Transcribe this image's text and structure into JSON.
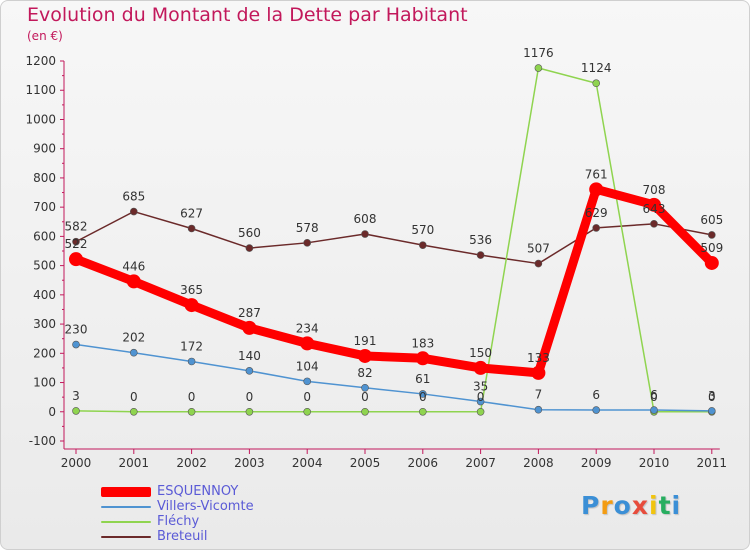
{
  "chart_data": {
    "type": "line",
    "title": "Evolution du Montant de la Dette par Habitant",
    "unit": "(en €)",
    "xlabel": "",
    "ylabel": "",
    "ylim": [
      -100,
      1200
    ],
    "yticks": [
      -100,
      0,
      100,
      200,
      300,
      400,
      500,
      600,
      700,
      800,
      900,
      1000,
      1100,
      1200
    ],
    "ytick_labels": [
      "-100",
      "0",
      "100",
      "200",
      "300",
      "400",
      "500",
      "600",
      "700",
      "800",
      "900",
      "1000",
      "1100",
      "1200"
    ],
    "categories": [
      "2000",
      "2001",
      "2002",
      "2003",
      "2004",
      "2005",
      "2006",
      "2007",
      "2008",
      "2009",
      "2010",
      "2011"
    ],
    "grid": false,
    "legend_position": "bottom-left",
    "series": [
      {
        "name": "ESQUENNOY",
        "color": "#ff0000",
        "values": [
          522,
          446,
          365,
          287,
          234,
          191,
          183,
          150,
          133,
          761,
          708,
          509
        ],
        "labels": [
          "522",
          "446",
          "365",
          "287",
          "234",
          "191",
          "183",
          "150",
          "133",
          "761",
          "708",
          "509"
        ]
      },
      {
        "name": "Villers-Vicomte",
        "color": "#4f93d1",
        "values": [
          230,
          202,
          172,
          140,
          104,
          82,
          61,
          35,
          7,
          6,
          6,
          3
        ],
        "labels": [
          "230",
          "202",
          "172",
          "140",
          "104",
          "82",
          "61",
          "35",
          "7",
          "6",
          "6",
          "3"
        ]
      },
      {
        "name": "Fléchy",
        "color": "#8fd44f",
        "values": [
          3,
          0,
          0,
          0,
          0,
          0,
          0,
          0,
          1176,
          1124,
          0,
          0
        ],
        "labels": [
          "3",
          "0",
          "0",
          "0",
          "0",
          "0",
          "0",
          "0",
          "1176",
          "1124",
          "0",
          "0"
        ]
      },
      {
        "name": "Breteuil",
        "color": "#6b2a2a",
        "values": [
          582,
          685,
          627,
          560,
          578,
          608,
          570,
          536,
          507,
          629,
          643,
          605
        ],
        "labels": [
          "582",
          "685",
          "627",
          "560",
          "578",
          "608",
          "570",
          "536",
          "507",
          "629",
          "643",
          "605"
        ]
      }
    ]
  },
  "logo": {
    "letters": [
      "P",
      "r",
      "o",
      "x",
      "i",
      "t",
      "i"
    ],
    "colors": [
      "#3b8fd6",
      "#f39c12",
      "#3b8fd6",
      "#e74c3c",
      "#f1c40f",
      "#27ae60",
      "#3b8fd6"
    ]
  }
}
